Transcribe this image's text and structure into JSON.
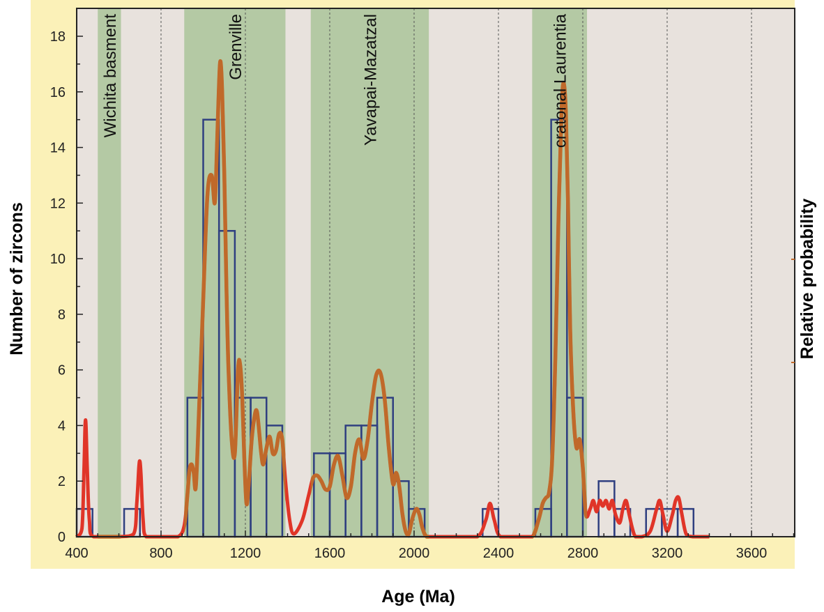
{
  "chart_data": {
    "type": "bar",
    "title": "",
    "xlabel": "Age (Ma)",
    "ylabel": "Number of zircons",
    "y2label": "Relative probability",
    "xlim": [
      400,
      3800
    ],
    "ylim": [
      0,
      19
    ],
    "x_ticks": [
      400,
      800,
      1200,
      1600,
      2000,
      2400,
      2800,
      3200,
      3600
    ],
    "y_ticks": [
      0,
      2,
      4,
      6,
      8,
      10,
      12,
      14,
      16,
      18
    ],
    "colors": {
      "plot_background": "#e8e2dd",
      "frame_background": "#fbf1b8",
      "region_fill": "#b4c9a4",
      "histogram_stroke": "#2f3f80",
      "pdp_curve": "#c0692a",
      "pdp_curve_outside": "#e03528",
      "gridline": "#555555"
    },
    "regions": [
      {
        "label": "Wichita basment",
        "start": 500,
        "end": 610
      },
      {
        "label": "Grenville",
        "start": 910,
        "end": 1390
      },
      {
        "label": "Yavapai-Mazatzal",
        "start": 1510,
        "end": 2070
      },
      {
        "label": "cratonal Laurentia",
        "start": 2560,
        "end": 2820
      }
    ],
    "histogram": {
      "bin_width": 75,
      "bins": [
        {
          "start": 400,
          "count": 1
        },
        {
          "start": 625,
          "count": 1
        },
        {
          "start": 925,
          "count": 5
        },
        {
          "start": 1000,
          "count": 15
        },
        {
          "start": 1075,
          "count": 11
        },
        {
          "start": 1150,
          "count": 5
        },
        {
          "start": 1225,
          "count": 5
        },
        {
          "start": 1300,
          "count": 4
        },
        {
          "start": 1525,
          "count": 3
        },
        {
          "start": 1600,
          "count": 3
        },
        {
          "start": 1675,
          "count": 4
        },
        {
          "start": 1750,
          "count": 4
        },
        {
          "start": 1825,
          "count": 5
        },
        {
          "start": 1900,
          "count": 2
        },
        {
          "start": 1975,
          "count": 1
        },
        {
          "start": 2325,
          "count": 1
        },
        {
          "start": 2575,
          "count": 1
        },
        {
          "start": 2650,
          "count": 15
        },
        {
          "start": 2725,
          "count": 5
        },
        {
          "start": 2875,
          "count": 2
        },
        {
          "start": 2950,
          "count": 1
        },
        {
          "start": 3100,
          "count": 1
        },
        {
          "start": 3175,
          "count": 1
        },
        {
          "start": 3250,
          "count": 1
        }
      ]
    },
    "probability_curve": {
      "x": [
        400,
        425,
        435,
        442,
        450,
        460,
        480,
        600,
        670,
        685,
        695,
        700,
        705,
        715,
        730,
        800,
        880,
        910,
        925,
        935,
        945,
        955,
        965,
        980,
        1000,
        1020,
        1040,
        1055,
        1065,
        1075,
        1082,
        1090,
        1100,
        1110,
        1120,
        1135,
        1150,
        1165,
        1175,
        1185,
        1195,
        1205,
        1215,
        1230,
        1245,
        1255,
        1265,
        1275,
        1285,
        1300,
        1315,
        1330,
        1345,
        1360,
        1375,
        1390,
        1410,
        1430,
        1470,
        1500,
        1520,
        1540,
        1560,
        1580,
        1600,
        1620,
        1640,
        1660,
        1680,
        1700,
        1720,
        1740,
        1760,
        1780,
        1800,
        1820,
        1840,
        1860,
        1880,
        1900,
        1915,
        1930,
        1945,
        1960,
        1975,
        1990,
        2010,
        2025,
        2040,
        2060,
        2100,
        2200,
        2300,
        2340,
        2360,
        2380,
        2410,
        2500,
        2560,
        2590,
        2610,
        2625,
        2640,
        2655,
        2670,
        2685,
        2700,
        2710,
        2720,
        2730,
        2740,
        2755,
        2770,
        2785,
        2800,
        2815,
        2835,
        2850,
        2865,
        2880,
        2895,
        2910,
        2925,
        2940,
        2955,
        2975,
        2990,
        3005,
        3020,
        3035,
        3050,
        3080,
        3120,
        3150,
        3165,
        3180,
        3200,
        3225,
        3240,
        3255,
        3270,
        3290,
        3320,
        3350,
        3400
      ],
      "y": [
        0.0,
        0.3,
        2.5,
        4.2,
        2.5,
        0.6,
        0.0,
        0.0,
        0.1,
        1.2,
        2.5,
        2.7,
        2.2,
        0.6,
        0.0,
        0.0,
        0.0,
        0.4,
        1.5,
        2.4,
        2.6,
        2.3,
        1.8,
        4.5,
        8.5,
        12.3,
        13.0,
        12.0,
        14.0,
        16.3,
        17.1,
        16.0,
        13.0,
        9.0,
        6.0,
        3.5,
        3.0,
        6.0,
        6.2,
        5.0,
        2.8,
        1.2,
        1.8,
        3.5,
        4.4,
        4.5,
        3.8,
        3.0,
        2.6,
        3.2,
        3.6,
        3.0,
        3.1,
        3.7,
        3.5,
        2.0,
        0.6,
        0.1,
        0.6,
        1.5,
        2.1,
        2.2,
        2.0,
        1.7,
        1.8,
        2.6,
        2.9,
        2.2,
        1.4,
        1.8,
        3.0,
        3.5,
        2.8,
        3.5,
        4.8,
        5.8,
        5.9,
        5.0,
        3.2,
        1.9,
        2.3,
        1.8,
        0.8,
        0.2,
        0.1,
        0.6,
        1.0,
        0.8,
        0.3,
        0.0,
        0.0,
        0.0,
        0.0,
        0.6,
        1.2,
        0.6,
        0.0,
        0.0,
        0.0,
        0.6,
        1.2,
        1.4,
        1.6,
        2.8,
        6.5,
        11.5,
        15.5,
        16.3,
        15.2,
        12.0,
        7.5,
        4.5,
        3.2,
        3.5,
        2.5,
        0.8,
        1.0,
        1.3,
        0.9,
        1.3,
        1.1,
        1.3,
        1.0,
        1.3,
        0.8,
        0.5,
        1.0,
        1.3,
        0.8,
        0.3,
        0.0,
        0.0,
        0.2,
        1.0,
        1.3,
        0.8,
        0.2,
        0.8,
        1.3,
        1.4,
        0.8,
        0.1,
        0.0,
        0.0,
        0.0
      ]
    }
  }
}
